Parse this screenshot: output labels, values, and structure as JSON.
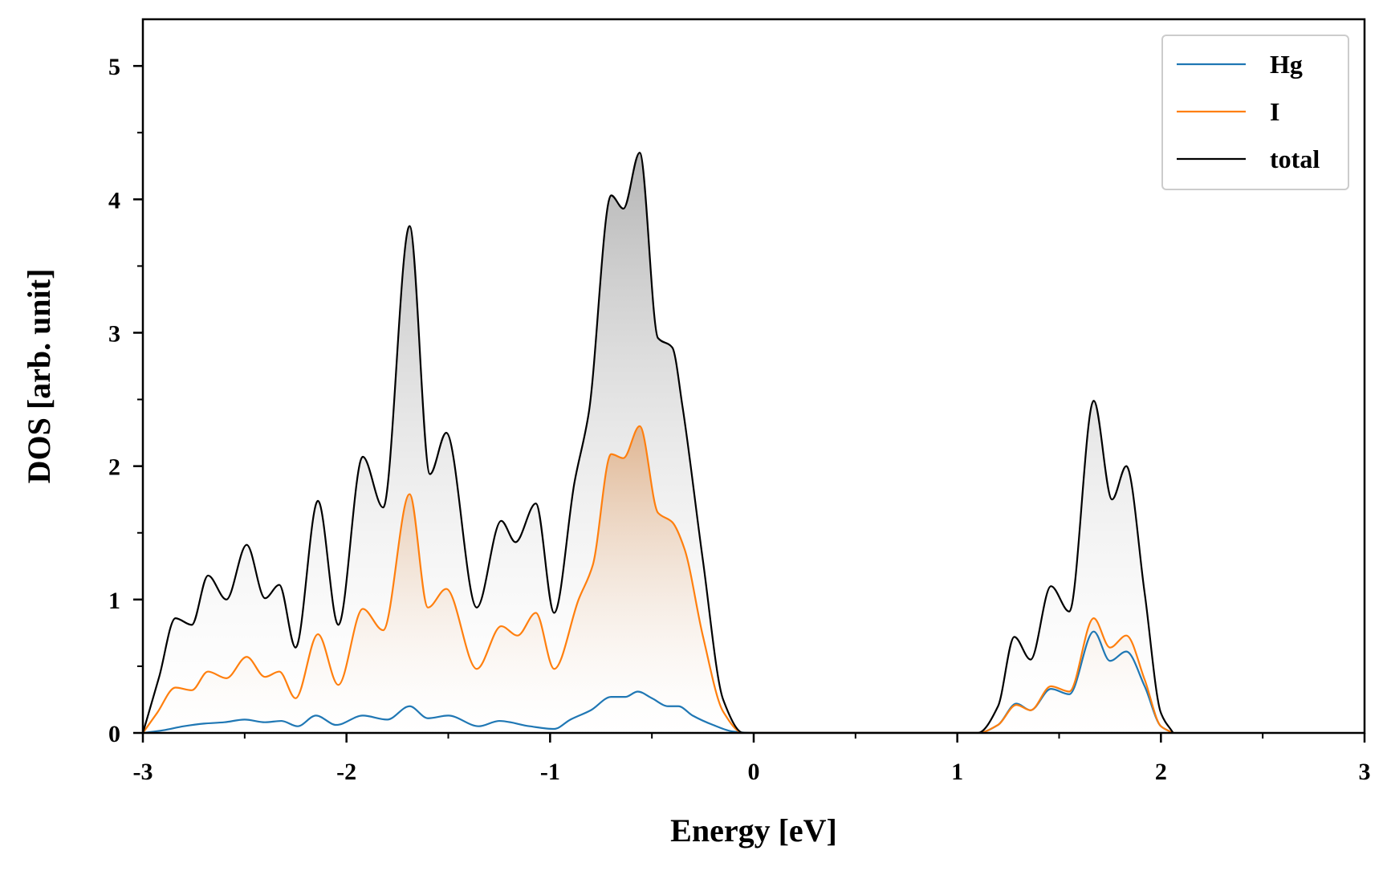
{
  "chart_data": {
    "type": "area",
    "title": "",
    "xlabel": "Energy [eV]",
    "ylabel": "DOS [arb. unit]",
    "xlim": [
      -3,
      3
    ],
    "ylim": [
      0,
      5.35
    ],
    "xticks": [
      -3,
      -2,
      -1,
      0,
      1,
      2,
      3
    ],
    "xtick_labels": [
      "-3",
      "-2",
      "-1",
      "0",
      "1",
      "2",
      "3"
    ],
    "yticks": [
      0,
      1,
      2,
      3,
      4,
      5
    ],
    "ytick_labels": [
      "0",
      "1",
      "2",
      "3",
      "4",
      "5"
    ],
    "grid": false,
    "legend_position": "top-right",
    "series": [
      {
        "name": "Hg",
        "color": "#1f77b4",
        "filled": false,
        "points": [
          [
            -3.0,
            0.0
          ],
          [
            -2.9,
            0.02
          ],
          [
            -2.8,
            0.05
          ],
          [
            -2.7,
            0.07
          ],
          [
            -2.6,
            0.08
          ],
          [
            -2.5,
            0.1
          ],
          [
            -2.4,
            0.08
          ],
          [
            -2.32,
            0.09
          ],
          [
            -2.24,
            0.05
          ],
          [
            -2.15,
            0.13
          ],
          [
            -2.05,
            0.06
          ],
          [
            -1.92,
            0.13
          ],
          [
            -1.8,
            0.1
          ],
          [
            -1.69,
            0.2
          ],
          [
            -1.6,
            0.11
          ],
          [
            -1.5,
            0.13
          ],
          [
            -1.35,
            0.05
          ],
          [
            -1.25,
            0.09
          ],
          [
            -1.1,
            0.05
          ],
          [
            -0.98,
            0.03
          ],
          [
            -0.9,
            0.1
          ],
          [
            -0.8,
            0.17
          ],
          [
            -0.7,
            0.27
          ],
          [
            -0.63,
            0.27
          ],
          [
            -0.57,
            0.31
          ],
          [
            -0.5,
            0.26
          ],
          [
            -0.42,
            0.2
          ],
          [
            -0.37,
            0.2
          ],
          [
            -0.3,
            0.13
          ],
          [
            -0.2,
            0.06
          ],
          [
            -0.1,
            0.01
          ],
          [
            0.0,
            0.0
          ],
          [
            1.1,
            0.0
          ],
          [
            1.2,
            0.06
          ],
          [
            1.29,
            0.22
          ],
          [
            1.36,
            0.17
          ],
          [
            1.46,
            0.33
          ],
          [
            1.55,
            0.29
          ],
          [
            1.67,
            0.76
          ],
          [
            1.75,
            0.54
          ],
          [
            1.83,
            0.61
          ],
          [
            1.92,
            0.35
          ],
          [
            2.0,
            0.05
          ],
          [
            2.06,
            0.0
          ]
        ]
      },
      {
        "name": "I",
        "color": "#ff7f0e",
        "filled": true,
        "points": [
          [
            -3.0,
            0.0
          ],
          [
            -2.93,
            0.15
          ],
          [
            -2.84,
            0.34
          ],
          [
            -2.76,
            0.32
          ],
          [
            -2.68,
            0.46
          ],
          [
            -2.59,
            0.41
          ],
          [
            -2.49,
            0.57
          ],
          [
            -2.4,
            0.42
          ],
          [
            -2.33,
            0.46
          ],
          [
            -2.25,
            0.26
          ],
          [
            -2.14,
            0.74
          ],
          [
            -2.04,
            0.36
          ],
          [
            -1.92,
            0.93
          ],
          [
            -1.82,
            0.77
          ],
          [
            -1.69,
            1.79
          ],
          [
            -1.6,
            0.94
          ],
          [
            -1.51,
            1.08
          ],
          [
            -1.36,
            0.48
          ],
          [
            -1.24,
            0.8
          ],
          [
            -1.16,
            0.73
          ],
          [
            -1.07,
            0.9
          ],
          [
            -0.98,
            0.48
          ],
          [
            -0.86,
            1.0
          ],
          [
            -0.79,
            1.26
          ],
          [
            -0.7,
            2.09
          ],
          [
            -0.64,
            2.06
          ],
          [
            -0.56,
            2.3
          ],
          [
            -0.47,
            1.65
          ],
          [
            -0.4,
            1.58
          ],
          [
            -0.34,
            1.38
          ],
          [
            -0.25,
            0.73
          ],
          [
            -0.15,
            0.16
          ],
          [
            -0.05,
            0.0
          ],
          [
            1.1,
            0.0
          ],
          [
            1.2,
            0.06
          ],
          [
            1.29,
            0.21
          ],
          [
            1.36,
            0.17
          ],
          [
            1.46,
            0.35
          ],
          [
            1.55,
            0.31
          ],
          [
            1.67,
            0.86
          ],
          [
            1.75,
            0.64
          ],
          [
            1.83,
            0.73
          ],
          [
            1.92,
            0.4
          ],
          [
            2.0,
            0.05
          ],
          [
            2.06,
            0.0
          ]
        ]
      },
      {
        "name": "total",
        "color": "#000000",
        "filled": true,
        "points": [
          [
            -3.0,
            0.0
          ],
          [
            -2.92,
            0.42
          ],
          [
            -2.84,
            0.86
          ],
          [
            -2.76,
            0.81
          ],
          [
            -2.68,
            1.18
          ],
          [
            -2.59,
            1.0
          ],
          [
            -2.49,
            1.41
          ],
          [
            -2.4,
            1.01
          ],
          [
            -2.33,
            1.11
          ],
          [
            -2.25,
            0.64
          ],
          [
            -2.14,
            1.74
          ],
          [
            -2.04,
            0.81
          ],
          [
            -1.92,
            2.07
          ],
          [
            -1.82,
            1.69
          ],
          [
            -1.69,
            3.8
          ],
          [
            -1.59,
            1.94
          ],
          [
            -1.51,
            2.25
          ],
          [
            -1.36,
            0.94
          ],
          [
            -1.24,
            1.59
          ],
          [
            -1.17,
            1.43
          ],
          [
            -1.07,
            1.72
          ],
          [
            -0.98,
            0.9
          ],
          [
            -0.88,
            1.88
          ],
          [
            -0.81,
            2.4
          ],
          [
            -0.7,
            4.03
          ],
          [
            -0.64,
            3.93
          ],
          [
            -0.56,
            4.35
          ],
          [
            -0.47,
            2.96
          ],
          [
            -0.4,
            2.89
          ],
          [
            -0.35,
            2.45
          ],
          [
            -0.25,
            1.3
          ],
          [
            -0.15,
            0.25
          ],
          [
            -0.05,
            0.0
          ],
          [
            1.1,
            0.0
          ],
          [
            1.2,
            0.2
          ],
          [
            1.28,
            0.72
          ],
          [
            1.36,
            0.55
          ],
          [
            1.46,
            1.1
          ],
          [
            1.55,
            0.91
          ],
          [
            1.67,
            2.49
          ],
          [
            1.76,
            1.75
          ],
          [
            1.83,
            2.0
          ],
          [
            1.92,
            1.05
          ],
          [
            2.0,
            0.15
          ],
          [
            2.06,
            0.0
          ]
        ]
      }
    ]
  }
}
